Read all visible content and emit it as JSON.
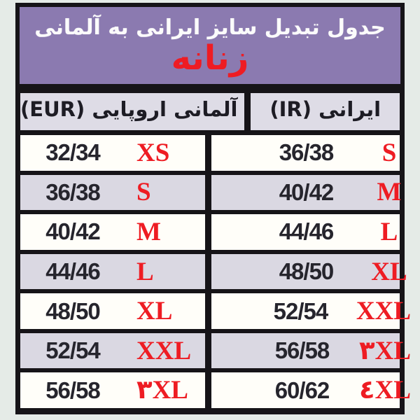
{
  "header": {
    "title": "جدول تبدیل سایز ایرانی به آلمانی",
    "subtitle": "زنانه"
  },
  "columns": {
    "european": "آلمانی اروپایی (EUR)",
    "iranian": "ایرانی (IR)"
  },
  "rows": [
    {
      "eur": "32/34",
      "eur_label": "XS",
      "ir": "36/38",
      "ir_label": "S"
    },
    {
      "eur": "36/38",
      "eur_label": "S",
      "ir": "40/42",
      "ir_label": "M"
    },
    {
      "eur": "40/42",
      "eur_label": "M",
      "ir": "44/46",
      "ir_label": "L"
    },
    {
      "eur": "44/46",
      "eur_label": "L",
      "ir": "48/50",
      "ir_label": "XL"
    },
    {
      "eur": "48/50",
      "eur_label": "XL",
      "ir": "52/54",
      "ir_label": "XXL"
    },
    {
      "eur": "52/54",
      "eur_label": "XXL",
      "ir": "56/58",
      "ir_label": "۳XL"
    },
    {
      "eur": "56/58",
      "eur_label": "۳XL",
      "ir": "60/62",
      "ir_label": "٤XL"
    }
  ],
  "colors": {
    "outer_background": "#e5ebe7",
    "header_purple": "#8b7ab0",
    "accent_red": "#ee1c23",
    "row_white": "#fffef9",
    "row_lavender": "#dad8e2",
    "header_cell_gray": "#dedce6",
    "border_black": "#161418",
    "number_text": "#26252d",
    "title_text": "#fbfbfb"
  }
}
